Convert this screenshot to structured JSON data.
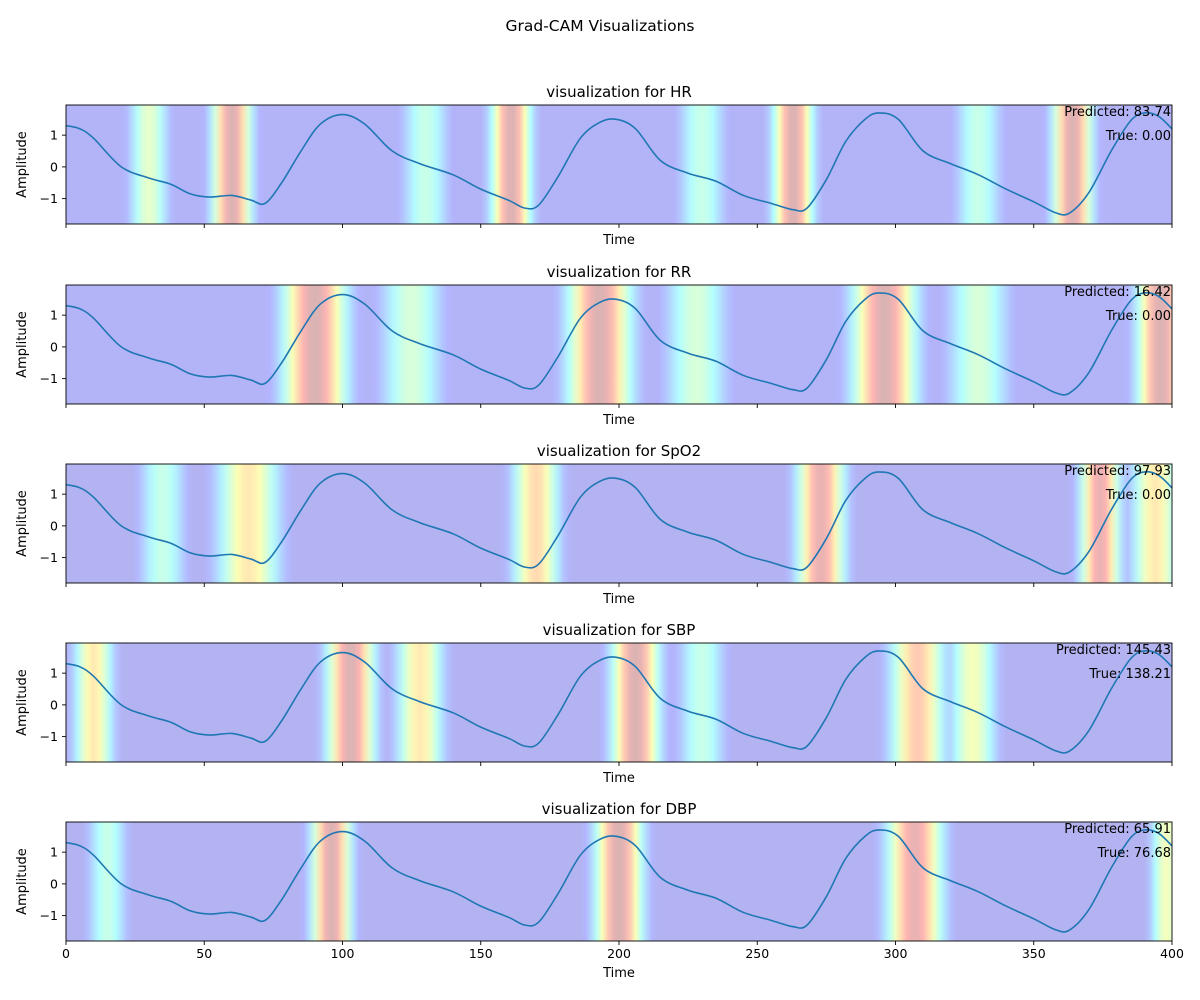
{
  "figure": {
    "title": "Grad-CAM Visualizations"
  },
  "chart_data": [
    {
      "type": "line",
      "title": "visualization for HR",
      "xlabel": "Time",
      "ylabel": "Amplitude",
      "xlim": [
        0,
        400
      ],
      "ylim": [
        -1.8,
        1.95
      ],
      "xticks": [
        0,
        50,
        100,
        150,
        200,
        250,
        300,
        350,
        400
      ],
      "show_xtick_labels": false,
      "yticks": [
        -1,
        0,
        1
      ],
      "annotations": [
        "Predicted: 83.74",
        "True: 0.00"
      ],
      "heatmap_peaks": [
        [
          60,
          5,
          1.0
        ],
        [
          161,
          5,
          1.0
        ],
        [
          263,
          5,
          1.0
        ],
        [
          364,
          5,
          1.0
        ],
        [
          30,
          5,
          0.55
        ],
        [
          130,
          6,
          0.45
        ],
        [
          230,
          6,
          0.45
        ],
        [
          330,
          6,
          0.45
        ]
      ],
      "heatmap_baseline": 0.1
    },
    {
      "type": "line",
      "title": "visualization for RR",
      "xlabel": "Time",
      "ylabel": "Amplitude",
      "xlim": [
        0,
        400
      ],
      "ylim": [
        -1.8,
        1.95
      ],
      "xticks": [
        0,
        50,
        100,
        150,
        200,
        250,
        300,
        350,
        400
      ],
      "show_xtick_labels": false,
      "yticks": [
        -1,
        0,
        1
      ],
      "annotations": [
        "Predicted: 16.42",
        "True: 0.00"
      ],
      "heatmap_peaks": [
        [
          90,
          8,
          1.0
        ],
        [
          193,
          8,
          1.0
        ],
        [
          296,
          8,
          1.0
        ],
        [
          396,
          6,
          1.0
        ],
        [
          125,
          8,
          0.5
        ],
        [
          228,
          8,
          0.5
        ],
        [
          330,
          8,
          0.5
        ]
      ],
      "heatmap_baseline": 0.1
    },
    {
      "type": "line",
      "title": "visualization for SpO2",
      "xlabel": "Time",
      "ylabel": "Amplitude",
      "xlim": [
        0,
        400
      ],
      "ylim": [
        -1.8,
        1.95
      ],
      "xticks": [
        0,
        50,
        100,
        150,
        200,
        250,
        300,
        350,
        400
      ],
      "show_xtick_labels": false,
      "yticks": [
        -1,
        0,
        1
      ],
      "annotations": [
        "Predicted: 97.93",
        "True: 0.00"
      ],
      "heatmap_peaks": [
        [
          66,
          8,
          0.7
        ],
        [
          170,
          6,
          0.75
        ],
        [
          273,
          6,
          0.95
        ],
        [
          374,
          5,
          0.95
        ],
        [
          394,
          6,
          0.7
        ],
        [
          35,
          6,
          0.45
        ]
      ],
      "heatmap_baseline": 0.08
    },
    {
      "type": "line",
      "title": "visualization for SBP",
      "xlabel": "Time",
      "ylabel": "Amplitude",
      "xlim": [
        0,
        400
      ],
      "ylim": [
        -1.8,
        1.95
      ],
      "xticks": [
        0,
        50,
        100,
        150,
        200,
        250,
        300,
        350,
        400
      ],
      "show_xtick_labels": false,
      "yticks": [
        -1,
        0,
        1
      ],
      "annotations": [
        "Predicted: 145.43",
        "True: 138.21"
      ],
      "heatmap_peaks": [
        [
          103,
          6,
          1.0
        ],
        [
          206,
          6,
          1.0
        ],
        [
          308,
          7,
          0.8
        ],
        [
          10,
          5,
          0.7
        ],
        [
          128,
          6,
          0.7
        ],
        [
          328,
          6,
          0.6
        ],
        [
          230,
          6,
          0.45
        ]
      ],
      "heatmap_baseline": 0.08
    },
    {
      "type": "line",
      "title": "visualization for DBP",
      "xlabel": "Time",
      "ylabel": "Amplitude",
      "xlim": [
        0,
        400
      ],
      "ylim": [
        -1.8,
        1.95
      ],
      "xticks": [
        0,
        50,
        100,
        150,
        200,
        250,
        300,
        350,
        400
      ],
      "show_xtick_labels": true,
      "xtick_labels": [
        "0",
        "50",
        "100",
        "150",
        "200",
        "250",
        "300",
        "350",
        "400"
      ],
      "yticks": [
        -1,
        0,
        1
      ],
      "annotations": [
        "Predicted: 65.91",
        "True: 76.68"
      ],
      "heatmap_peaks": [
        [
          96,
          5,
          1.0
        ],
        [
          200,
          6,
          1.0
        ],
        [
          307,
          7,
          0.95
        ],
        [
          15,
          5,
          0.45
        ],
        [
          398,
          4,
          0.6
        ]
      ],
      "heatmap_baseline": 0.08
    }
  ],
  "signal": {
    "x": [
      0,
      5,
      10,
      20,
      30,
      38,
      45,
      52,
      60,
      67,
      72,
      78,
      85,
      92,
      100,
      108,
      118,
      128,
      140,
      150,
      160,
      166,
      171,
      178,
      186,
      193,
      199,
      206,
      215,
      225,
      235,
      245,
      255,
      263,
      268,
      275,
      282,
      289,
      294,
      301,
      310,
      320,
      330,
      340,
      350,
      358,
      363,
      370,
      378,
      385,
      390,
      395,
      400
    ],
    "y": [
      1.3,
      1.2,
      0.9,
      0.0,
      -0.35,
      -0.55,
      -0.85,
      -0.95,
      -0.9,
      -1.05,
      -1.15,
      -0.5,
      0.5,
      1.35,
      1.65,
      1.35,
      0.5,
      0.1,
      -0.25,
      -0.7,
      -1.05,
      -1.3,
      -1.2,
      -0.3,
      0.9,
      1.4,
      1.5,
      1.2,
      0.2,
      -0.2,
      -0.45,
      -0.9,
      -1.15,
      -1.35,
      -1.3,
      -0.4,
      0.8,
      1.5,
      1.7,
      1.5,
      0.5,
      0.1,
      -0.25,
      -0.7,
      -1.1,
      -1.45,
      -1.45,
      -0.8,
      0.5,
      1.45,
      1.7,
      1.6,
      1.2
    ]
  }
}
